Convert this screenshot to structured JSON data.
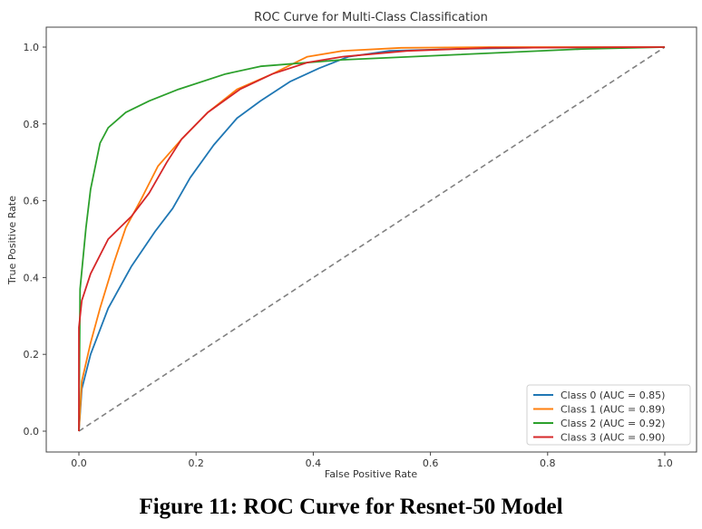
{
  "caption": "Figure 11: ROC Curve for Resnet-50 Model",
  "chart_data": {
    "type": "line",
    "title": "ROC Curve for Multi-Class Classification",
    "xlabel": "False Positive Rate",
    "ylabel": "True Positive Rate",
    "xlim": [
      -0.05,
      1.05
    ],
    "ylim": [
      -0.05,
      1.05
    ],
    "xticks": [
      0.0,
      0.2,
      0.4,
      0.6,
      0.8,
      1.0
    ],
    "yticks": [
      0.0,
      0.2,
      0.4,
      0.6,
      0.8,
      1.0
    ],
    "xtick_labels": [
      "0.0",
      "0.2",
      "0.4",
      "0.6",
      "0.8",
      "1.0"
    ],
    "ytick_labels": [
      "0.0",
      "0.2",
      "0.4",
      "0.6",
      "0.8",
      "1.0"
    ],
    "grid": false,
    "legend_position": "lower-right",
    "series": [
      {
        "name": "Class 0 (AUC = 0.85)",
        "color": "#1f77b4",
        "x": [
          0,
          0.005,
          0.02,
          0.05,
          0.09,
          0.13,
          0.16,
          0.19,
          0.23,
          0.27,
          0.31,
          0.36,
          0.41,
          0.46,
          0.53,
          0.64,
          0.8,
          1.0
        ],
        "y": [
          0,
          0.11,
          0.2,
          0.32,
          0.43,
          0.52,
          0.58,
          0.66,
          0.745,
          0.815,
          0.86,
          0.91,
          0.945,
          0.975,
          0.99,
          0.995,
          0.999,
          1.0
        ]
      },
      {
        "name": "Class 1 (AUC = 0.89)",
        "color": "#ff7f0e",
        "x": [
          0,
          0.005,
          0.02,
          0.036,
          0.06,
          0.08,
          0.105,
          0.135,
          0.175,
          0.22,
          0.27,
          0.33,
          0.39,
          0.45,
          0.55,
          0.7,
          1.0
        ],
        "y": [
          0,
          0.13,
          0.23,
          0.32,
          0.44,
          0.53,
          0.6,
          0.69,
          0.76,
          0.83,
          0.89,
          0.93,
          0.975,
          0.99,
          0.998,
          1.0,
          1.0
        ]
      },
      {
        "name": "Class 2 (AUC = 0.92)",
        "color": "#2ca02c",
        "x": [
          0,
          0.002,
          0.012,
          0.02,
          0.036,
          0.05,
          0.08,
          0.12,
          0.17,
          0.25,
          0.31,
          0.45,
          0.64,
          0.86,
          1.0
        ],
        "y": [
          0,
          0.37,
          0.53,
          0.63,
          0.75,
          0.79,
          0.83,
          0.86,
          0.89,
          0.93,
          0.95,
          0.967,
          0.98,
          0.995,
          1.0
        ]
      },
      {
        "name": "Class 3 (AUC = 0.90)",
        "color": "#d62728",
        "x": [
          0,
          0.0,
          0.005,
          0.02,
          0.05,
          0.09,
          0.12,
          0.15,
          0.175,
          0.22,
          0.275,
          0.33,
          0.39,
          0.45,
          0.56,
          0.7,
          1.0
        ],
        "y": [
          0,
          0.27,
          0.34,
          0.41,
          0.5,
          0.56,
          0.62,
          0.7,
          0.76,
          0.83,
          0.89,
          0.93,
          0.96,
          0.975,
          0.99,
          0.998,
          1.0
        ]
      }
    ],
    "reference_line": {
      "x": [
        0,
        1
      ],
      "y": [
        0,
        1
      ],
      "color": "#808080",
      "style": "dashed"
    }
  }
}
